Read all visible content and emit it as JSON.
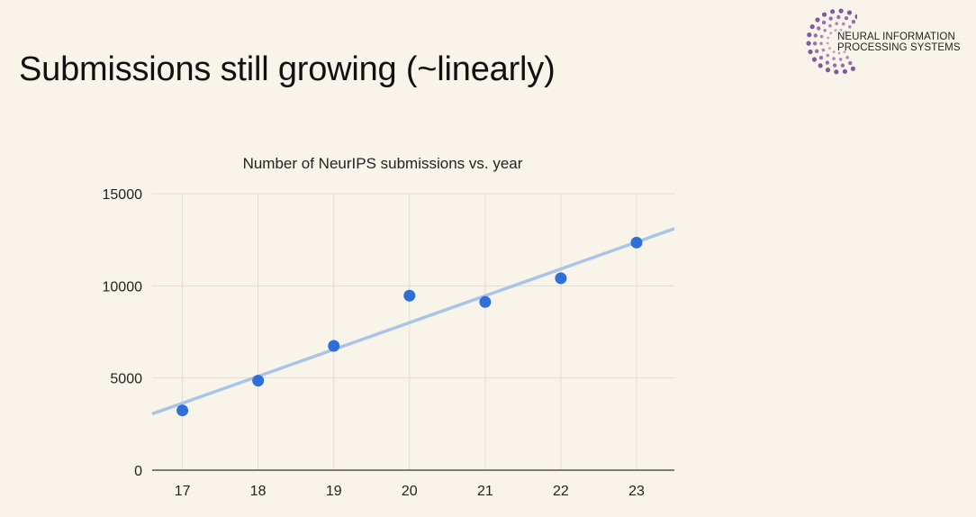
{
  "slide": {
    "title": "Submissions still growing (~linearly)"
  },
  "logo": {
    "line1": "NEURAL INFORMATION",
    "line2": "PROCESSING SYSTEMS",
    "accent_color": "#7b4f9e"
  },
  "chart_data": {
    "type": "scatter",
    "title": "Number of NeurIPS submissions vs. year",
    "xlabel": "",
    "ylabel": "",
    "x": [
      17,
      18,
      19,
      20,
      21,
      22,
      23
    ],
    "y": [
      3240,
      4856,
      6743,
      9467,
      9122,
      10411,
      12345
    ],
    "xlim": [
      16.6,
      23.5
    ],
    "ylim": [
      0,
      15000
    ],
    "x_ticks": [
      "17",
      "18",
      "19",
      "20",
      "21",
      "22",
      "23"
    ],
    "y_ticks": [
      "0",
      "5000",
      "10000",
      "15000"
    ],
    "y_tick_values": [
      0,
      5000,
      10000,
      15000
    ],
    "trendline": {
      "type": "linear",
      "x": [
        16.6,
        23.5
      ],
      "y": [
        3050,
        13100
      ]
    },
    "grid": true,
    "legend": "none",
    "point_color": "#2f6fd8",
    "trend_color": "#a9c4e8"
  }
}
